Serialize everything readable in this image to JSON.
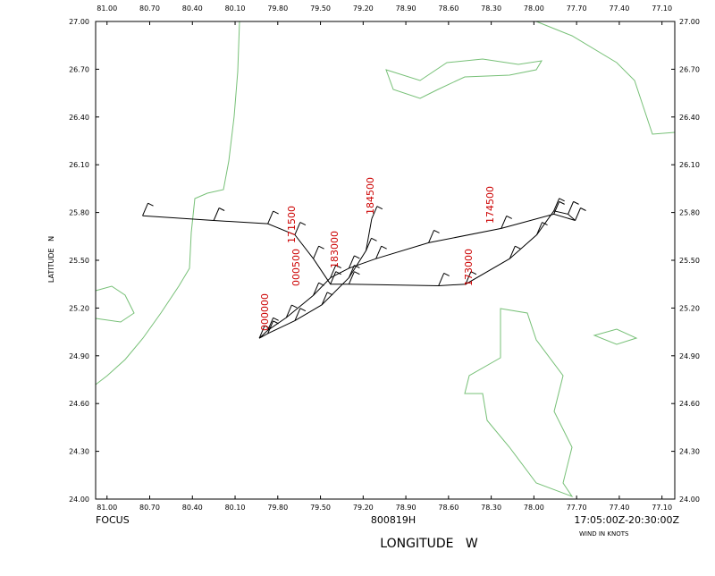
{
  "chart_data": {
    "type": "line",
    "header_left": "FOCUS",
    "header_center": "800819H",
    "header_right": "17:05:00Z-20:30:00Z",
    "note": "WIND IN KNOTS",
    "x_label": "LONGITUDE   W",
    "y_label": "LATITUDE   N",
    "color": "#000000",
    "xlim": [
      81.08,
      77.01
    ],
    "ylim": [
      24,
      27
    ],
    "xticks": [
      {
        "value": 81,
        "label": "81.00"
      },
      {
        "value": 80.7,
        "label": "80.70"
      },
      {
        "value": 80.4,
        "label": "80.40"
      },
      {
        "value": 80.1,
        "label": "80.10"
      },
      {
        "value": 79.8,
        "label": "79.80"
      },
      {
        "value": 79.5,
        "label": "79.50"
      },
      {
        "value": 79.2,
        "label": "79.20"
      },
      {
        "value": 78.9,
        "label": "78.90"
      },
      {
        "value": 78.6,
        "label": "78.60"
      },
      {
        "value": 78.3,
        "label": "78.30"
      },
      {
        "value": 78,
        "label": "78.00"
      },
      {
        "value": 77.7,
        "label": "77.70"
      },
      {
        "value": 77.4,
        "label": "77.40"
      },
      {
        "value": 77.1,
        "label": "77.10"
      }
    ],
    "yticks": [
      {
        "value": 24,
        "label": "24.00"
      },
      {
        "value": 24.3,
        "label": "24.30"
      },
      {
        "value": 24.6,
        "label": "24.60"
      },
      {
        "value": 24.9,
        "label": "24.90"
      },
      {
        "value": 25.2,
        "label": "25.20"
      },
      {
        "value": 25.5,
        "label": "25.50"
      },
      {
        "value": 25.8,
        "label": "25.80"
      },
      {
        "value": 26.1,
        "label": "26.10"
      },
      {
        "value": 26.4,
        "label": "26.40"
      },
      {
        "value": 26.7,
        "label": "26.70"
      },
      {
        "value": 27,
        "label": "27.00"
      }
    ],
    "x": [
      80.75,
      80.25,
      79.87,
      79.68,
      79.55,
      79.43,
      79.3,
      78.67,
      78.48,
      78.17,
      77.98,
      77.86,
      77.76,
      77.71,
      77.86,
      78.23,
      78.74,
      79.11,
      79.3,
      79.43,
      79.55,
      79.74,
      79.87,
      79.93,
      79.87,
      79.68,
      79.49,
      79.3,
      79.18,
      79.14
    ],
    "values": [
      25.78,
      25.75,
      25.73,
      25.66,
      25.51,
      25.35,
      25.35,
      25.34,
      25.35,
      25.51,
      25.66,
      25.81,
      25.79,
      25.75,
      25.79,
      25.7,
      25.61,
      25.51,
      25.45,
      25.39,
      25.28,
      25.14,
      25.06,
      25.01,
      25.04,
      25.12,
      25.22,
      25.39,
      25.56,
      25.76
    ],
    "time_labels": [
      "171500",
      "174500",
      "173000",
      "183000",
      "184500",
      "000500",
      "000000"
    ]
  }
}
